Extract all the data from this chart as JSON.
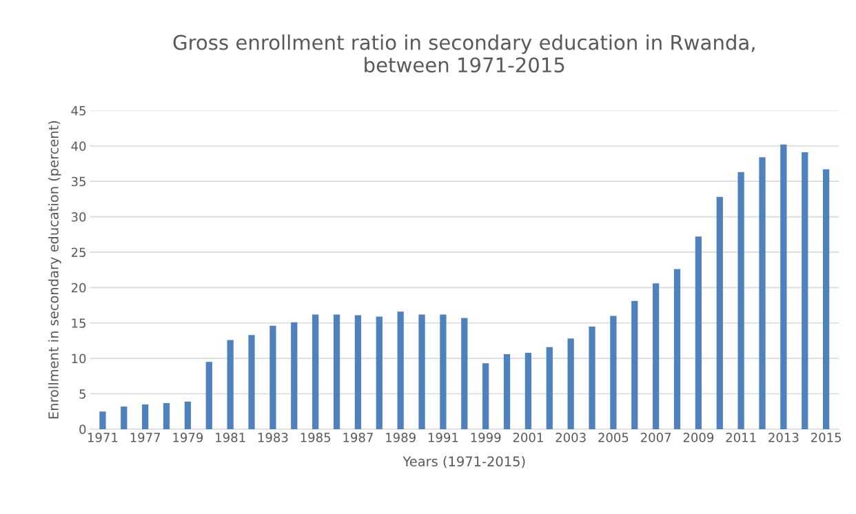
{
  "chart_data": {
    "type": "bar",
    "title": "Gross enrollment ratio in secondary education in Rwanda,\nbetween 1971-2015",
    "xlabel": "Years (1971-2015)",
    "ylabel": "Enrollment in secondary education (percent)",
    "categories": [
      "1971",
      null,
      "1977",
      null,
      "1979",
      null,
      "1981",
      null,
      "1983",
      null,
      "1985",
      null,
      "1987",
      null,
      "1989",
      null,
      "1991",
      null,
      "1999",
      null,
      "2001",
      null,
      "2003",
      null,
      "2005",
      null,
      "2007",
      null,
      "2009",
      null,
      "2011",
      null,
      "2013",
      null,
      "2015"
    ],
    "values": [
      2.5,
      3.2,
      3.5,
      3.7,
      3.9,
      9.5,
      12.6,
      13.3,
      14.6,
      15.1,
      16.2,
      16.2,
      16.1,
      15.9,
      16.6,
      16.2,
      16.2,
      15.7,
      9.3,
      10.6,
      10.8,
      11.6,
      12.8,
      14.5,
      16.0,
      18.1,
      20.6,
      22.6,
      27.2,
      32.8,
      36.3,
      38.4,
      40.2,
      39.1,
      36.7
    ],
    "color": "#4f81bd",
    "ylim": [
      0,
      45
    ],
    "yticks": [
      0,
      5,
      10,
      15,
      20,
      25,
      30,
      35,
      40,
      45
    ],
    "grid": "y"
  }
}
